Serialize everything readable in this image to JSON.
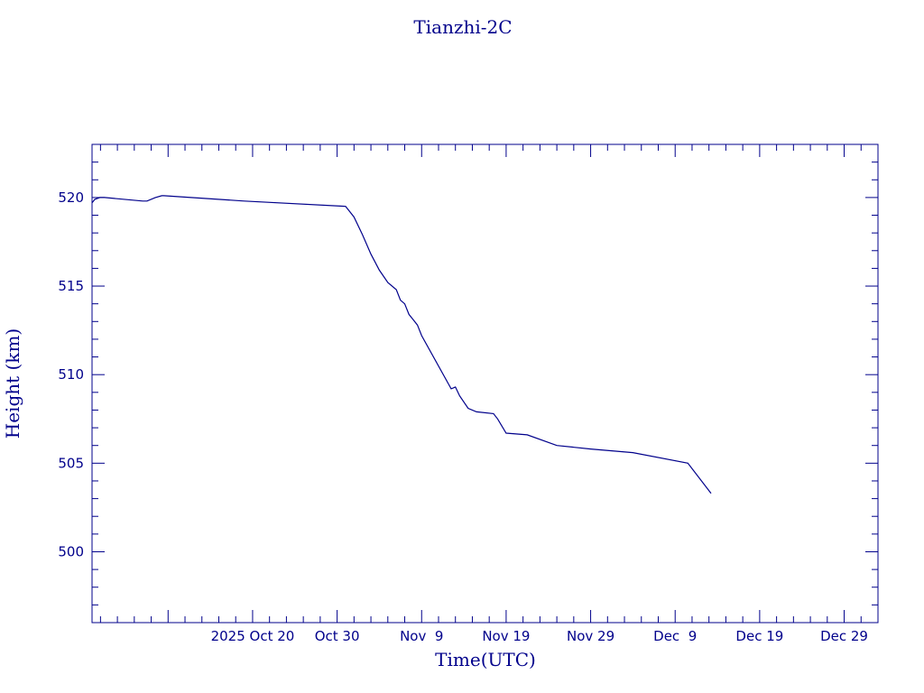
{
  "chart_data": {
    "type": "line",
    "title": "Tianzhi-2C",
    "xlabel": "Time(UTC)",
    "ylabel": "Height (km)",
    "colors": {
      "line": "#00008b",
      "axes": "#00008b",
      "text": "#00008b",
      "background": "#ffffff"
    },
    "grid": false,
    "legend": "none",
    "xlim": [
      "2025-10-01",
      "2026-01-02"
    ],
    "ylim": [
      496,
      523
    ],
    "y_ticks": [
      500,
      505,
      510,
      515,
      520
    ],
    "y_minor_step": 1,
    "x_tick_dates": [
      "2025-10-10",
      "2025-10-20",
      "2025-10-30",
      "2025-11-09",
      "2025-11-19",
      "2025-11-29",
      "2025-12-09",
      "2025-12-19",
      "2025-12-29"
    ],
    "x_tick_labels": [
      "2025 Oct 20",
      "Oct 30",
      "Nov  9",
      "Nov 19",
      "Nov 29",
      "Dec  9",
      "Dec 19",
      "Dec 29"
    ],
    "x_tick_label_dates": [
      "2025-10-20",
      "2025-10-30",
      "2025-11-09",
      "2025-11-19",
      "2025-11-29",
      "2025-12-09",
      "2025-12-19",
      "2025-12-29"
    ],
    "x_minor_step_days": 2,
    "series": [
      {
        "x": [
          "2025-10-01T00:00",
          "2025-10-01T08:00",
          "2025-10-01T22:00",
          "2025-10-02T12:00",
          "2025-10-07T00:00",
          "2025-10-07T12:00",
          "2025-10-08T12:00",
          "2025-10-09T06:00",
          "2025-10-09T12:00",
          "2025-10-19T00:00",
          "2025-10-31T00:00",
          "2025-10-31T12:00",
          "2025-11-01T00:00",
          "2025-11-02T00:00",
          "2025-11-03T00:00",
          "2025-11-04T00:00",
          "2025-11-05T00:00",
          "2025-11-06T00:00",
          "2025-11-06T12:00",
          "2025-11-07T00:00",
          "2025-11-07T12:00",
          "2025-11-08T00:00",
          "2025-11-08T12:00",
          "2025-11-09T00:00",
          "2025-11-12T12:00",
          "2025-11-13T00:00",
          "2025-11-13T12:00",
          "2025-11-14T12:00",
          "2025-11-15T12:00",
          "2025-11-17T12:00",
          "2025-11-18T00:00",
          "2025-11-19T00:00",
          "2025-11-21T12:00",
          "2025-11-25T00:00",
          "2025-11-29T00:00",
          "2025-12-04T00:00",
          "2025-12-10T12:00",
          "2025-12-13T06:00"
        ],
        "values": [
          519.7,
          519.9,
          520.0,
          520.0,
          519.8,
          519.8,
          520.0,
          520.1,
          520.1,
          519.8,
          519.5,
          519.2,
          518.9,
          517.9,
          516.8,
          515.9,
          515.2,
          514.8,
          514.2,
          514.0,
          513.4,
          513.1,
          512.8,
          512.2,
          509.2,
          509.3,
          508.8,
          508.1,
          507.9,
          507.8,
          507.5,
          506.7,
          506.6,
          506.0,
          505.8,
          505.6,
          505.0,
          503.3
        ]
      }
    ]
  }
}
